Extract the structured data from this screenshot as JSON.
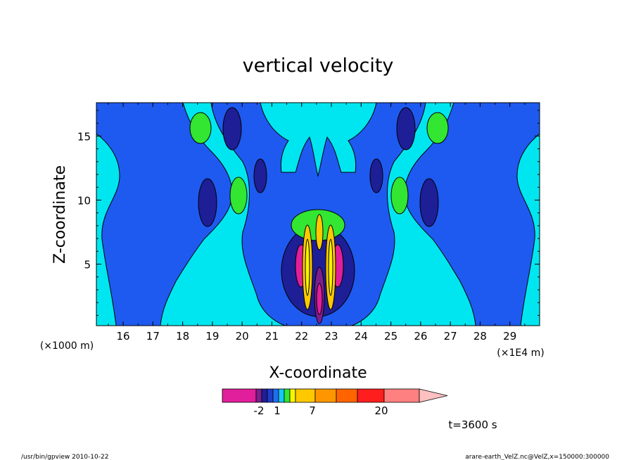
{
  "chart_data": {
    "type": "heatmap",
    "title": "vertical velocity",
    "xlabel": "X-coordinate",
    "ylabel": "Z-coordinate",
    "x_unit_left": "(×1000 m)",
    "x_unit_right": "(×1E4 m)",
    "x_ticks": [
      "16",
      "17",
      "18",
      "19",
      "20",
      "21",
      "22",
      "23",
      "24",
      "25",
      "26",
      "27",
      "28",
      "29"
    ],
    "y_ticks": [
      "5",
      "10",
      "15"
    ],
    "xlim": [
      15.1,
      30.0
    ],
    "ylim": [
      0.2,
      17.6
    ],
    "grid": false,
    "colorbar": {
      "labels": [
        "-2",
        "1",
        "7",
        "20"
      ],
      "colors": [
        "#e11e9b",
        "#7d1e8c",
        "#1e1e96",
        "#1e3cc8",
        "#1e6ef0",
        "#14c8f0",
        "#32e632",
        "#f5f500",
        "#ffc800",
        "#ff9600",
        "#ff6400",
        "#ff1e1e",
        "#ff8080",
        "#ffc0c0"
      ]
    },
    "time_label": "t=3600 s",
    "map_colors": {
      "background": "#00e6f0",
      "light_blue": "#1e5af0",
      "dark_blue": "#1e1e96",
      "green": "#32e632",
      "magenta": "#e11e9b",
      "purple": "#7d1e8c",
      "orange": "#ffc800",
      "yellow": "#f5f500"
    }
  },
  "footer": {
    "left": "/usr/bin/gpview   2010-10-22",
    "right": "arare-earth_VelZ.nc@VelZ,x=150000:300000"
  }
}
